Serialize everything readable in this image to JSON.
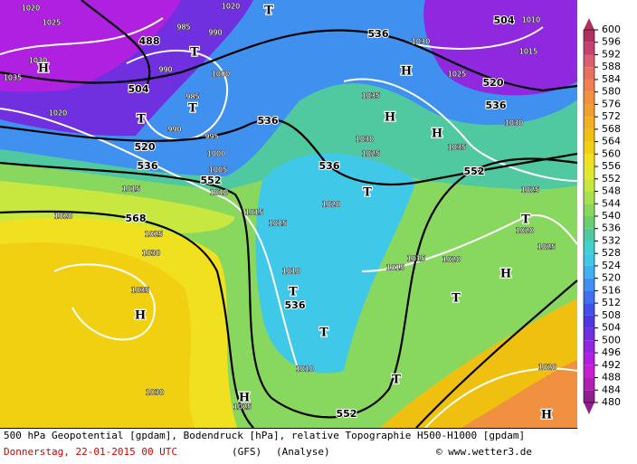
{
  "map": {
    "geopotential_labels": [
      488,
      504,
      520,
      536,
      552,
      568,
      536,
      536,
      536,
      552,
      520,
      536,
      504,
      536,
      552
    ],
    "pressure_labels": [
      1020,
      1025,
      1030,
      1035,
      1020,
      985,
      990,
      990,
      985,
      990,
      995,
      1000,
      1000,
      1005,
      1010,
      1015,
      1020,
      1025,
      1030,
      1035,
      1030,
      1015,
      1015,
      1010,
      1010,
      1025,
      1035,
      1030,
      1025,
      1020,
      1015,
      1015,
      1020,
      1035,
      1030,
      1025,
      1030,
      1015,
      1010,
      1025,
      1020,
      1025,
      1020,
      1020
    ],
    "pressure_centers": [
      "H",
      "T",
      "T",
      "T",
      "H",
      "H",
      "H",
      "T",
      "T",
      "H",
      "T",
      "T",
      "T",
      "T",
      "H",
      "H",
      "H",
      "T"
    ]
  },
  "colorbar": {
    "ticks": [
      600,
      596,
      592,
      588,
      584,
      580,
      576,
      572,
      568,
      564,
      560,
      556,
      552,
      548,
      544,
      540,
      536,
      532,
      528,
      524,
      520,
      516,
      512,
      508,
      504,
      500,
      496,
      492,
      488,
      484,
      480
    ],
    "colors": [
      "#b03060",
      "#c84070",
      "#d86070",
      "#e87060",
      "#f08050",
      "#f09040",
      "#f0a030",
      "#f0b020",
      "#f0c010",
      "#f0d010",
      "#f0e020",
      "#e0e830",
      "#c8e840",
      "#a8e050",
      "#88d860",
      "#68d070",
      "#50c8a0",
      "#40d0d0",
      "#40c8e8",
      "#40b0f0",
      "#4090f0",
      "#4070f0",
      "#4050e8",
      "#5038e0",
      "#7030e0",
      "#9028e0",
      "#b020e0",
      "#c820d0",
      "#b020b0",
      "#902090"
    ]
  },
  "footer": {
    "description": "500 hPa Geopotential [gpdam], Bodendruck [hPa], relative Topographie H500-H1000 [gpdam]",
    "date": "Donnerstag, 22-01-2015  00 UTC",
    "model": "(GFS)",
    "run": "(Analyse)",
    "site": "© www.wetter3.de"
  }
}
